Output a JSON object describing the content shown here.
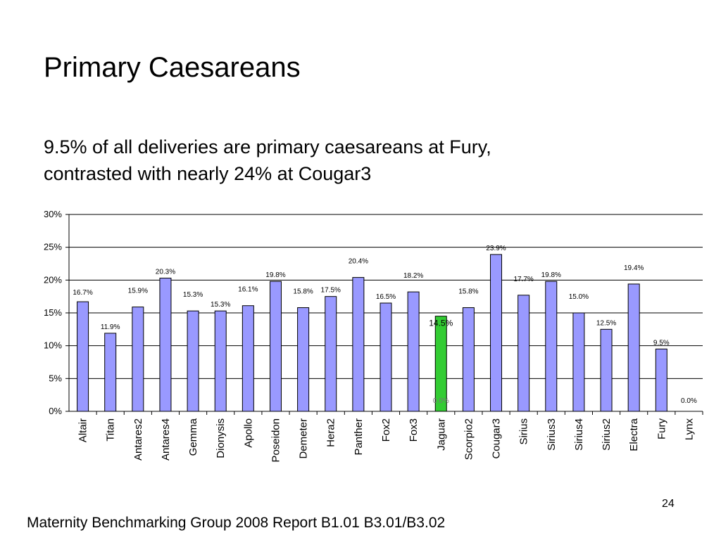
{
  "slide": {
    "title": "Primary Caesareans",
    "subtitle_line1": "9.5% of all deliveries are primary caesareans at Fury,",
    "subtitle_line2": "contrasted with nearly 24% at Cougar3",
    "page_number": "24",
    "footer": "Maternity Benchmarking Group 2008 Report B1.01 B3.01/B3.02"
  },
  "chart_data": {
    "type": "bar",
    "categories": [
      "Altair",
      "Titan",
      "Antares2",
      "Antares4",
      "Gemma",
      "Dionysis",
      "Apollo",
      "Poseidon",
      "Demeter",
      "Hera2",
      "Panther",
      "Fox2",
      "Fox3",
      "Jaguar",
      "Scorpio2",
      "Cougar3",
      "Sirius",
      "Sirius3",
      "Sirius4",
      "Sirius2",
      "Electra",
      "Fury",
      "Lynx"
    ],
    "values": [
      16.7,
      11.9,
      15.9,
      20.3,
      15.3,
      15.3,
      16.1,
      19.8,
      15.8,
      17.5,
      20.4,
      16.5,
      18.2,
      14.5,
      15.8,
      23.9,
      17.7,
      19.8,
      15.0,
      12.5,
      19.4,
      9.5,
      0.0
    ],
    "data_labels": [
      "16.7%",
      "11.9%",
      "15.9%",
      "20.3%",
      "15.3%",
      "15.3%",
      "16.1%",
      "19.8%",
      "15.8%",
      "17.5%",
      "20.4%",
      "16.5%",
      "18.2%",
      "14.5%",
      "15.8%",
      "23.9%",
      "17.7%",
      "19.8%",
      "15.0%",
      "12.5%",
      "19.4%",
      "9.5%",
      "0.0%"
    ],
    "extra_label": "0.0%",
    "highlight_category": "Jaguar",
    "bar_color": "#9999ff",
    "highlight_color": "#33cc33",
    "y_ticks": [
      "0%",
      "5%",
      "10%",
      "15%",
      "20%",
      "25%",
      "30%"
    ],
    "ylim": [
      0,
      30
    ],
    "grid": true,
    "title": "",
    "xlabel": "",
    "ylabel": ""
  }
}
